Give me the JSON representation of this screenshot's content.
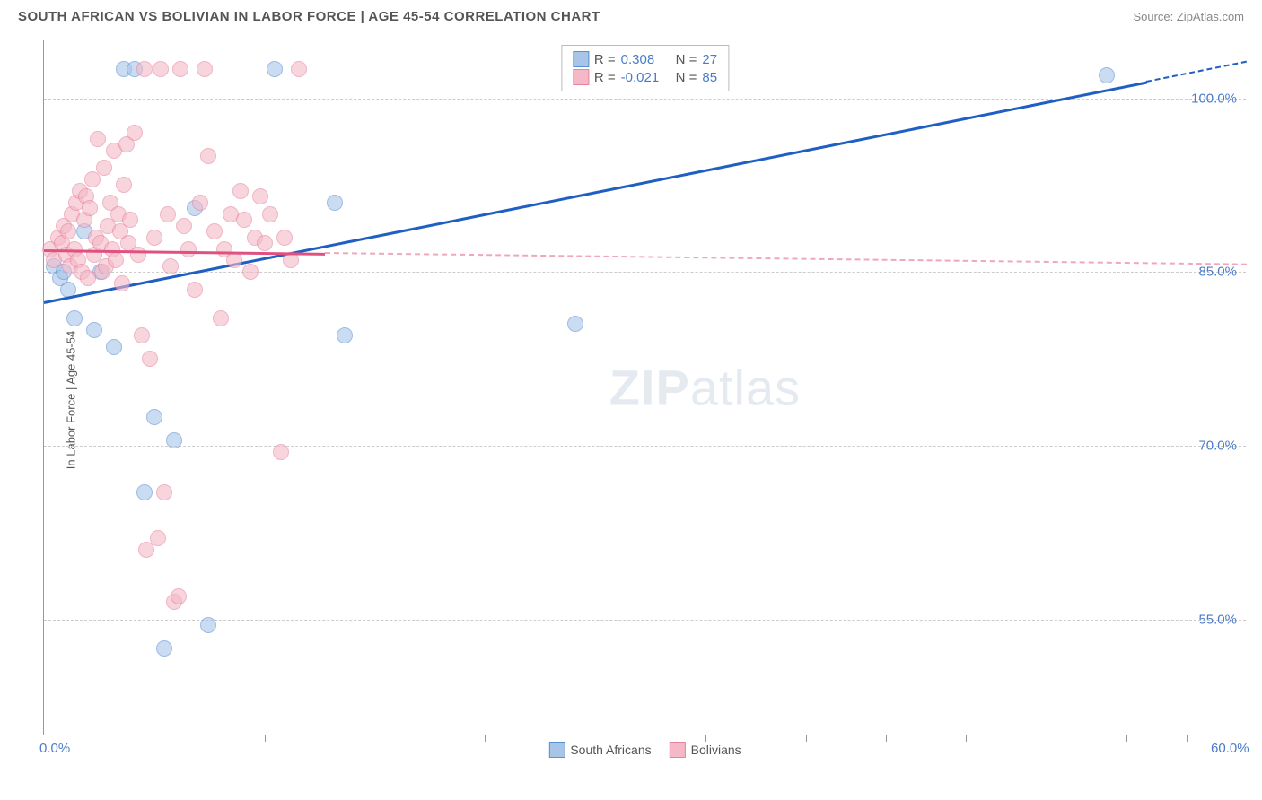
{
  "header": {
    "title": "SOUTH AFRICAN VS BOLIVIAN IN LABOR FORCE | AGE 45-54 CORRELATION CHART",
    "source": "Source: ZipAtlas.com"
  },
  "watermark": {
    "zip": "ZIP",
    "atlas": "atlas"
  },
  "chart": {
    "type": "scatter",
    "ylabel": "In Labor Force | Age 45-54",
    "xlim": [
      0,
      60
    ],
    "ylim": [
      45,
      105
    ],
    "background_color": "#ffffff",
    "grid_color": "#cccccc",
    "axis_color": "#999999",
    "tick_label_color": "#4a7bc8",
    "tick_fontsize": 15,
    "yticks": [
      {
        "value": 55.0,
        "label": "55.0%"
      },
      {
        "value": 70.0,
        "label": "70.0%"
      },
      {
        "value": 85.0,
        "label": "85.0%"
      },
      {
        "value": 100.0,
        "label": "100.0%"
      }
    ],
    "xticks": [
      {
        "value": 0,
        "label": "0.0%"
      },
      {
        "value": 60,
        "label": "60.0%"
      }
    ],
    "xtick_minor": [
      11,
      22,
      33,
      38,
      42,
      46,
      50,
      54,
      57
    ],
    "series": [
      {
        "name": "South Africans",
        "fill_color": "#a8c5e8",
        "stroke_color": "#5b8fd6",
        "marker_size": 18,
        "trend": {
          "x1": 0,
          "y1": 82.5,
          "x2": 55,
          "y2": 101.5,
          "color": "#1f5fc4",
          "width": 3,
          "dashed_after_x": 55
        },
        "legend": {
          "R": "0.308",
          "N": "27"
        },
        "points": [
          [
            0.5,
            85.5
          ],
          [
            0.8,
            84.5
          ],
          [
            1.0,
            85.0
          ],
          [
            1.2,
            83.5
          ],
          [
            1.5,
            81.0
          ],
          [
            2.0,
            88.5
          ],
          [
            2.5,
            80.0
          ],
          [
            2.8,
            85.0
          ],
          [
            3.5,
            78.5
          ],
          [
            4.0,
            102.5
          ],
          [
            4.5,
            102.5
          ],
          [
            5.0,
            66.0
          ],
          [
            5.5,
            72.5
          ],
          [
            6.0,
            52.5
          ],
          [
            6.5,
            70.5
          ],
          [
            7.5,
            90.5
          ],
          [
            8.2,
            54.5
          ],
          [
            11.5,
            102.5
          ],
          [
            14.5,
            91.0
          ],
          [
            15.0,
            79.5
          ],
          [
            26.5,
            80.5
          ],
          [
            53.0,
            102.0
          ]
        ]
      },
      {
        "name": "Bolivians",
        "fill_color": "#f4b8c6",
        "stroke_color": "#e683a0",
        "marker_size": 18,
        "trend": {
          "x1": 0,
          "y1": 87.0,
          "x2": 14,
          "y2": 86.7,
          "color": "#e05080",
          "width": 3,
          "dashed_after_x": 14,
          "dashed_color": "#f0a8b8"
        },
        "legend": {
          "R": "-0.021",
          "N": "85"
        },
        "points": [
          [
            0.3,
            87.0
          ],
          [
            0.5,
            86.0
          ],
          [
            0.7,
            88.0
          ],
          [
            0.9,
            87.5
          ],
          [
            1.0,
            89.0
          ],
          [
            1.1,
            86.5
          ],
          [
            1.2,
            88.5
          ],
          [
            1.3,
            85.5
          ],
          [
            1.4,
            90.0
          ],
          [
            1.5,
            87.0
          ],
          [
            1.6,
            91.0
          ],
          [
            1.7,
            86.0
          ],
          [
            1.8,
            92.0
          ],
          [
            1.9,
            85.0
          ],
          [
            2.0,
            89.5
          ],
          [
            2.1,
            91.5
          ],
          [
            2.2,
            84.5
          ],
          [
            2.3,
            90.5
          ],
          [
            2.4,
            93.0
          ],
          [
            2.5,
            86.5
          ],
          [
            2.6,
            88.0
          ],
          [
            2.7,
            96.5
          ],
          [
            2.8,
            87.5
          ],
          [
            2.9,
            85.0
          ],
          [
            3.0,
            94.0
          ],
          [
            3.1,
            85.5
          ],
          [
            3.2,
            89.0
          ],
          [
            3.3,
            91.0
          ],
          [
            3.4,
            87.0
          ],
          [
            3.5,
            95.5
          ],
          [
            3.6,
            86.0
          ],
          [
            3.7,
            90.0
          ],
          [
            3.8,
            88.5
          ],
          [
            3.9,
            84.0
          ],
          [
            4.0,
            92.5
          ],
          [
            4.1,
            96.0
          ],
          [
            4.2,
            87.5
          ],
          [
            4.3,
            89.5
          ],
          [
            4.5,
            97.0
          ],
          [
            4.7,
            86.5
          ],
          [
            4.9,
            79.5
          ],
          [
            5.0,
            102.5
          ],
          [
            5.1,
            61.0
          ],
          [
            5.3,
            77.5
          ],
          [
            5.5,
            88.0
          ],
          [
            5.7,
            62.0
          ],
          [
            5.8,
            102.5
          ],
          [
            6.0,
            66.0
          ],
          [
            6.2,
            90.0
          ],
          [
            6.3,
            85.5
          ],
          [
            6.5,
            56.5
          ],
          [
            6.7,
            57.0
          ],
          [
            6.8,
            102.5
          ],
          [
            7.0,
            89.0
          ],
          [
            7.2,
            87.0
          ],
          [
            7.5,
            83.5
          ],
          [
            7.8,
            91.0
          ],
          [
            8.0,
            102.5
          ],
          [
            8.2,
            95.0
          ],
          [
            8.5,
            88.5
          ],
          [
            8.8,
            81.0
          ],
          [
            9.0,
            87.0
          ],
          [
            9.3,
            90.0
          ],
          [
            9.5,
            86.0
          ],
          [
            9.8,
            92.0
          ],
          [
            10.0,
            89.5
          ],
          [
            10.3,
            85.0
          ],
          [
            10.5,
            88.0
          ],
          [
            10.8,
            91.5
          ],
          [
            11.0,
            87.5
          ],
          [
            11.3,
            90.0
          ],
          [
            11.8,
            69.5
          ],
          [
            12.0,
            88.0
          ],
          [
            12.3,
            86.0
          ],
          [
            12.7,
            102.5
          ]
        ]
      }
    ],
    "legend_bottom_labels": {
      "series1": "South Africans",
      "series2": "Bolivians"
    }
  }
}
